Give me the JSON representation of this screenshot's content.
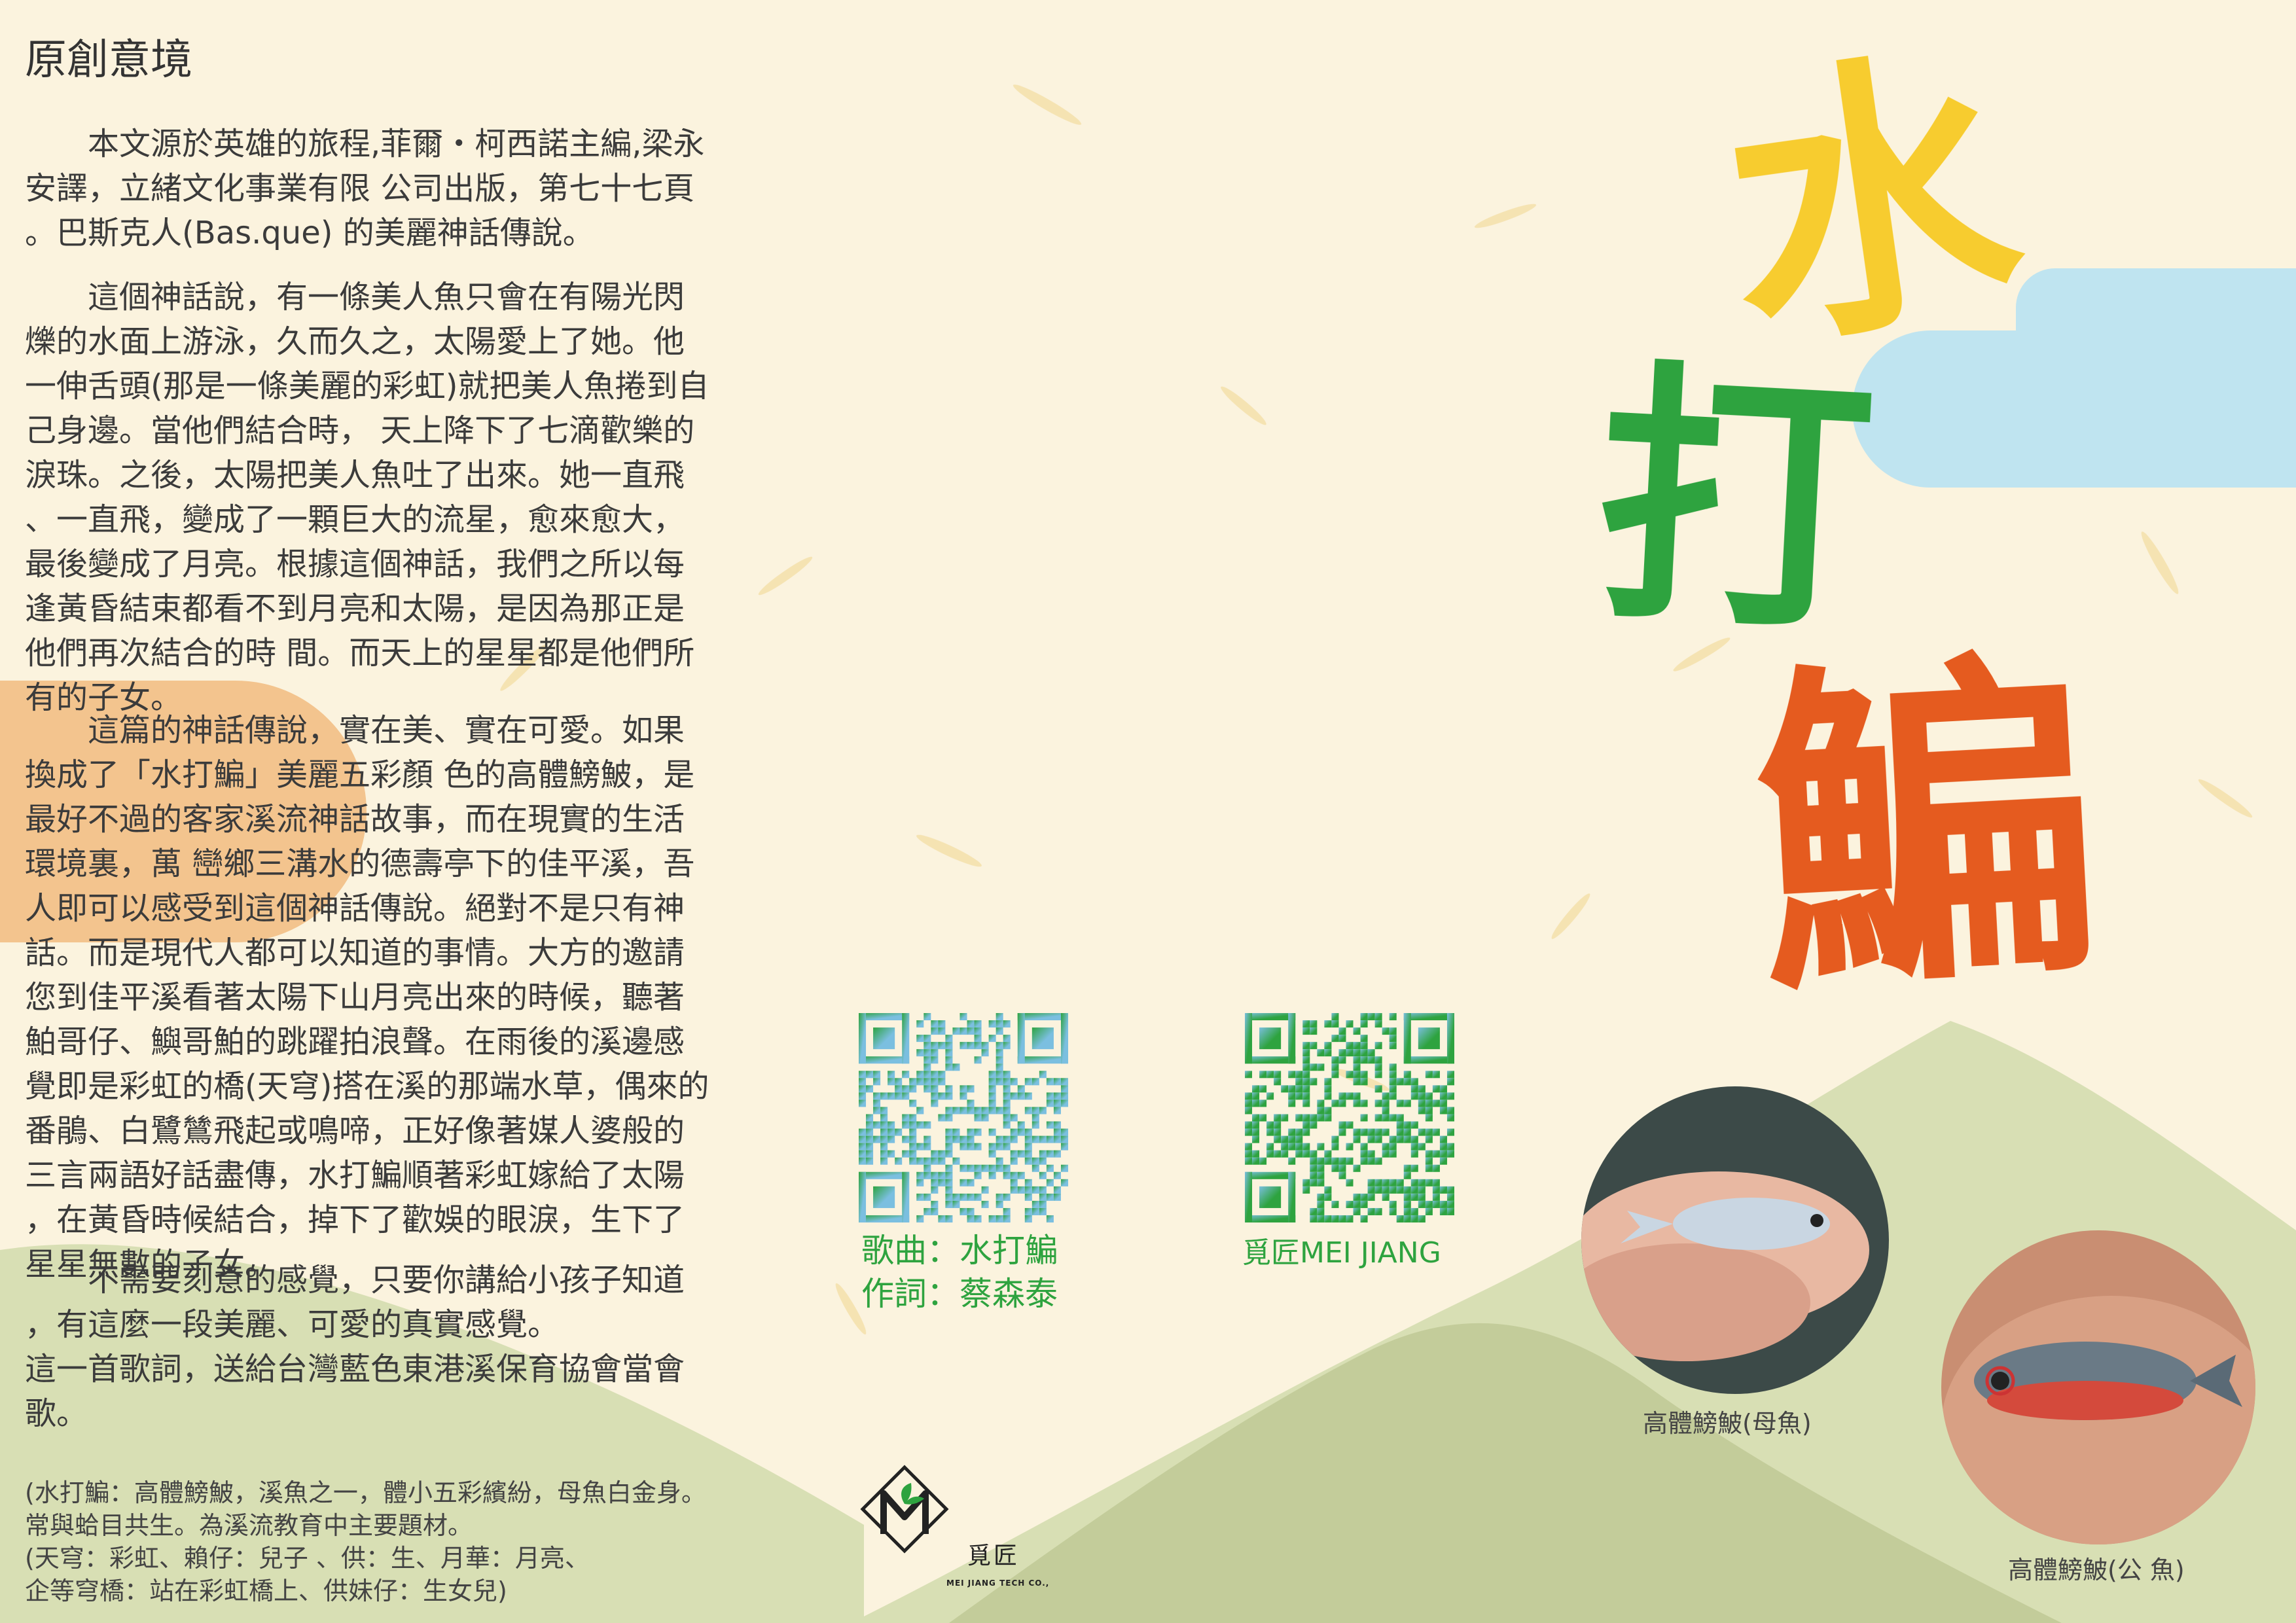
{
  "left_panel": {
    "heading": "原創意境",
    "paragraphs": [
      "　　本文源於英雄的旅程,菲爾・柯西諾主編,梁永\n安譯，立緒文化事業有限 公司出版，第七十七頁\n。巴斯克人(Bas.que) 的美麗神話傳說。",
      "　　這個神話說，有一條美人魚只會在有陽光閃\n爍的水面上游泳，久而久之，太陽愛上了她。他\n一伸舌頭(那是一條美麗的彩虹)就把美人魚捲到自\n己身邊。當他們結合時， 天上降下了七滴歡樂的\n淚珠。之後，太陽把美人魚吐了出來。她一直飛\n、一直飛，變成了一顆巨大的流星，愈來愈大，\n最後變成了月亮。根據這個神話，我們之所以每\n逢黃昏結束都看不到月亮和太陽，是因為那正是\n他們再次結合的時 間。而天上的星星都是他們所\n有的子女。",
      "　　這篇的神話傳說，實在美、實在可愛。如果\n換成了「水打鯿」美麗五彩顏 色的高體鰟鮍，是\n最好不過的客家溪流神話故事，而在現實的生活\n環境裏，萬 巒鄉三溝水的德壽亭下的佳平溪，吾\n人即可以感受到這個神話傳說。絕對不是只有神\n話。而是現代人都可以知道的事情。大方的邀請\n您到佳平溪看著太陽下山月亮出來的時候，聽著\n鮊哥仔、鱮哥鮊的跳躍拍浪聲。在雨後的溪邊感\n覺即是彩虹的橋(天穹)搭在溪的那端水草，偶來的\n番鵑、白鷺鷥飛起或鳴啼，正好像著媒人婆般的\n三言兩語好話盡傳，水打鯿順著彩虹嫁給了太陽\n，在黃昏時候結合，掉下了歡娛的眼淚，生下了\n星星無數的子女。",
      "　　不需要刻意的感覺，只要你講給小孩子知道\n，有這麼一段美麗、可愛的真實感覺。\n這一首歌詞，送給台灣藍色東港溪保育協會當會\n歌。"
    ],
    "footnote": "(水打鯿：高體鰟鮍，溪魚之一，體小五彩繽紛，母魚白金身。\n常與蛤目共生。為溪流教育中主要題材。\n (天穹：彩虹、賴仔：兒子 、供：生、月華：月亮、\n企等穹橋：站在彩虹橋上、供妹仔：生女兒)"
  },
  "title": {
    "char1": "水",
    "char2": "打",
    "char3": "鯿"
  },
  "qr": {
    "song_line1": "歌曲：水打鯿",
    "song_line2": "作詞：蔡森泰",
    "brand_caption": "覓匠MEI JIANG"
  },
  "photos": {
    "female_caption": "高體鰟鮍(母魚)",
    "male_caption": "高體鰟鮍(公 魚)"
  },
  "logo": {
    "name": "覓匠",
    "subtitle": "MEI JIANG TECH CO.,"
  },
  "colors": {
    "background": "#fbf3de",
    "hill": "#d8dfb4",
    "hill_dark": "#c3cc9a",
    "sky": "#bfe4f0",
    "sun": "#f3c48e",
    "yellow": "#f7cc2f",
    "green": "#2ea33f",
    "orange": "#e55b1f",
    "qr_blue": "#7bbfe0"
  }
}
